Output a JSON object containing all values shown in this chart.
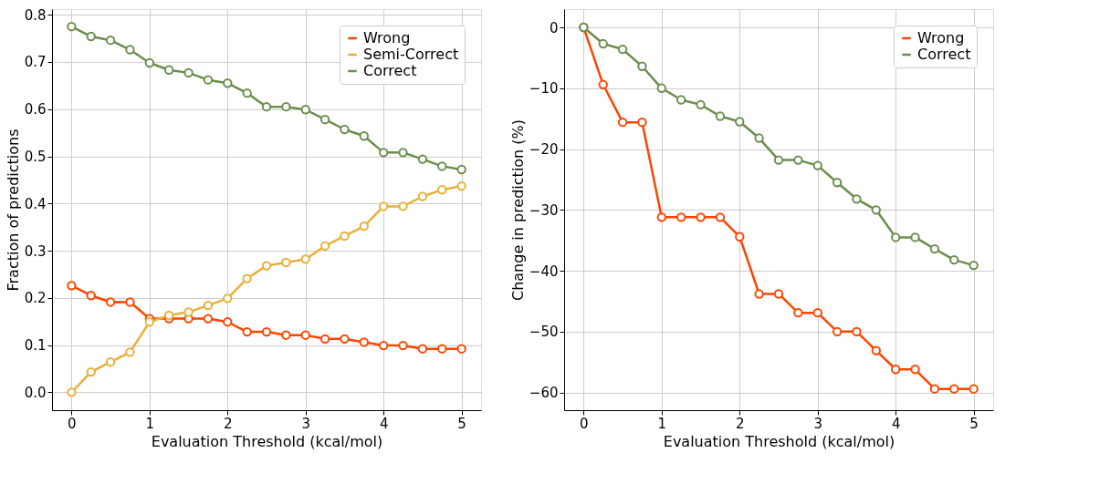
{
  "chart_data": [
    {
      "type": "line",
      "xlabel": "Evaluation Threshold (kcal/mol)",
      "ylabel": "Fraction of predictions",
      "x": [
        0,
        0.25,
        0.5,
        0.75,
        1,
        1.25,
        1.5,
        1.75,
        2,
        2.25,
        2.5,
        2.75,
        3,
        3.25,
        3.5,
        3.75,
        4,
        4.25,
        4.5,
        4.75,
        5
      ],
      "series": [
        {
          "name": "Wrong",
          "color": "#ff4500",
          "values": [
            0.226,
            0.205,
            0.191,
            0.191,
            0.156,
            0.156,
            0.156,
            0.156,
            0.149,
            0.128,
            0.128,
            0.121,
            0.121,
            0.113,
            0.113,
            0.106,
            0.099,
            0.099,
            0.092,
            0.092,
            0.092
          ]
        },
        {
          "name": "Semi-Correct",
          "color": "#e8b03a",
          "values": [
            0.0,
            0.043,
            0.064,
            0.085,
            0.149,
            0.163,
            0.17,
            0.184,
            0.199,
            0.241,
            0.268,
            0.275,
            0.282,
            0.31,
            0.331,
            0.352,
            0.394,
            0.394,
            0.415,
            0.429,
            0.437
          ]
        },
        {
          "name": "Correct",
          "color": "#6b8e4e",
          "values": [
            0.775,
            0.754,
            0.746,
            0.726,
            0.698,
            0.683,
            0.677,
            0.662,
            0.655,
            0.634,
            0.605,
            0.605,
            0.599,
            0.578,
            0.557,
            0.543,
            0.508,
            0.508,
            0.494,
            0.479,
            0.472
          ]
        }
      ],
      "xlim": [
        -0.25,
        5.25
      ],
      "xticks": [
        0,
        1,
        2,
        3,
        4,
        5
      ],
      "ylim": [
        -0.038,
        0.812
      ],
      "yticks": [
        {
          "value": 0,
          "label": "0.0"
        },
        0.1,
        0.2,
        0.3,
        0.4,
        0.5,
        0.6,
        0.7,
        0.8
      ],
      "grid": true,
      "legend": "top right",
      "marker": "circle",
      "line_style": "solid"
    },
    {
      "type": "line",
      "xlabel": "Evaluation Threshold (kcal/mol)",
      "ylabel": "Change in prediction (%)",
      "x": [
        0,
        0.25,
        0.5,
        0.75,
        1,
        1.25,
        1.5,
        1.75,
        2,
        2.25,
        2.5,
        2.75,
        3,
        3.25,
        3.5,
        3.75,
        4,
        4.25,
        4.5,
        4.75,
        5
      ],
      "series": [
        {
          "name": "Wrong",
          "color": "#ff4500",
          "values": [
            0,
            -9.4,
            -15.6,
            -15.6,
            -31.2,
            -31.2,
            -31.2,
            -31.2,
            -34.4,
            -43.8,
            -43.8,
            -46.9,
            -46.9,
            -50.0,
            -50.0,
            -53.1,
            -56.2,
            -56.2,
            -59.4,
            -59.4,
            -59.4
          ]
        },
        {
          "name": "Correct",
          "color": "#6b8e4e",
          "values": [
            0,
            -2.7,
            -3.6,
            -6.4,
            -10.0,
            -11.9,
            -12.7,
            -14.6,
            -15.5,
            -18.2,
            -21.8,
            -21.8,
            -22.7,
            -25.5,
            -28.2,
            -30.0,
            -34.5,
            -34.5,
            -36.4,
            -38.2,
            -39.1
          ]
        }
      ],
      "xlim": [
        -0.25,
        5.25
      ],
      "xticks": [
        0,
        1,
        2,
        3,
        4,
        5
      ],
      "ylim": [
        -62.9,
        3.0
      ],
      "yticks": [
        -60,
        -50,
        -40,
        -30,
        -20,
        -10,
        0
      ],
      "grid": true,
      "legend": "top right",
      "marker": "circle",
      "line_style": "solid"
    }
  ]
}
